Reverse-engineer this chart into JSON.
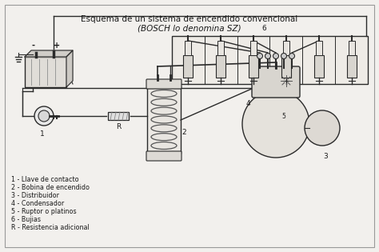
{
  "title_line1": "Esquema de un sistema de encendido convencional",
  "title_line2": "(BOSCH lo denomina SZ)",
  "bg_color": "#f2f0ed",
  "legend_items": [
    "1 - Llave de contacto",
    "2 - Bobina de encendido",
    "3 - Distribuidor",
    "4 - Condensador",
    "5 - Ruptor o platinos",
    "6 - Bujias",
    "R - Resistencia adicional"
  ],
  "line_color": "#2a2a2a",
  "text_color": "#1a1a1a",
  "title_fontsize": 7.5,
  "legend_fontsize": 5.8,
  "label_fontsize": 6.5
}
